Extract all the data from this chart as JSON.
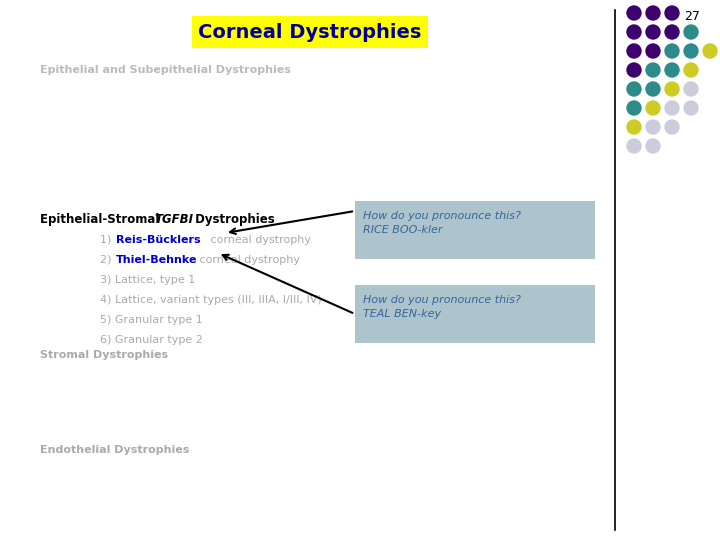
{
  "title": "Corneal Dystrophies",
  "title_bg": "#FFFF00",
  "title_color": "#000099",
  "slide_number": "27",
  "bg_color": "#FFFFFF",
  "section1": "Epithelial and Subepithelial Dystrophies",
  "section1_color": "#BBBBBB",
  "section2": "Stromal Dystrophies",
  "section2_color": "#AAAAAA",
  "section3": "Endothelial Dystrophies",
  "section3_color": "#AAAAAA",
  "callout1_text": "How do you pronounce this?\nRICE BOO-kler",
  "callout2_text": "How do you pronounce this?\nTEAL BEN-key",
  "callout_bg": "#adc4cc",
  "callout_text_color": "#336699",
  "dot_rows": [
    [
      "#3d006e",
      "#3d006e",
      "#3d006e"
    ],
    [
      "#3d006e",
      "#3d006e",
      "#3d006e",
      "#2e8b8b"
    ],
    [
      "#3d006e",
      "#3d006e",
      "#2e8b8b",
      "#2e8b8b",
      "#cccc22"
    ],
    [
      "#3d006e",
      "#2e8b8b",
      "#2e8b8b",
      "#cccc22"
    ],
    [
      "#2e8b8b",
      "#2e8b8b",
      "#cccc22",
      "#ccccdd"
    ],
    [
      "#2e8b8b",
      "#cccc22",
      "#ccccdd",
      "#ccccdd"
    ],
    [
      "#cccc22",
      "#ccccdd",
      "#ccccdd"
    ],
    [
      "#ccccdd",
      "#ccccdd"
    ]
  ]
}
